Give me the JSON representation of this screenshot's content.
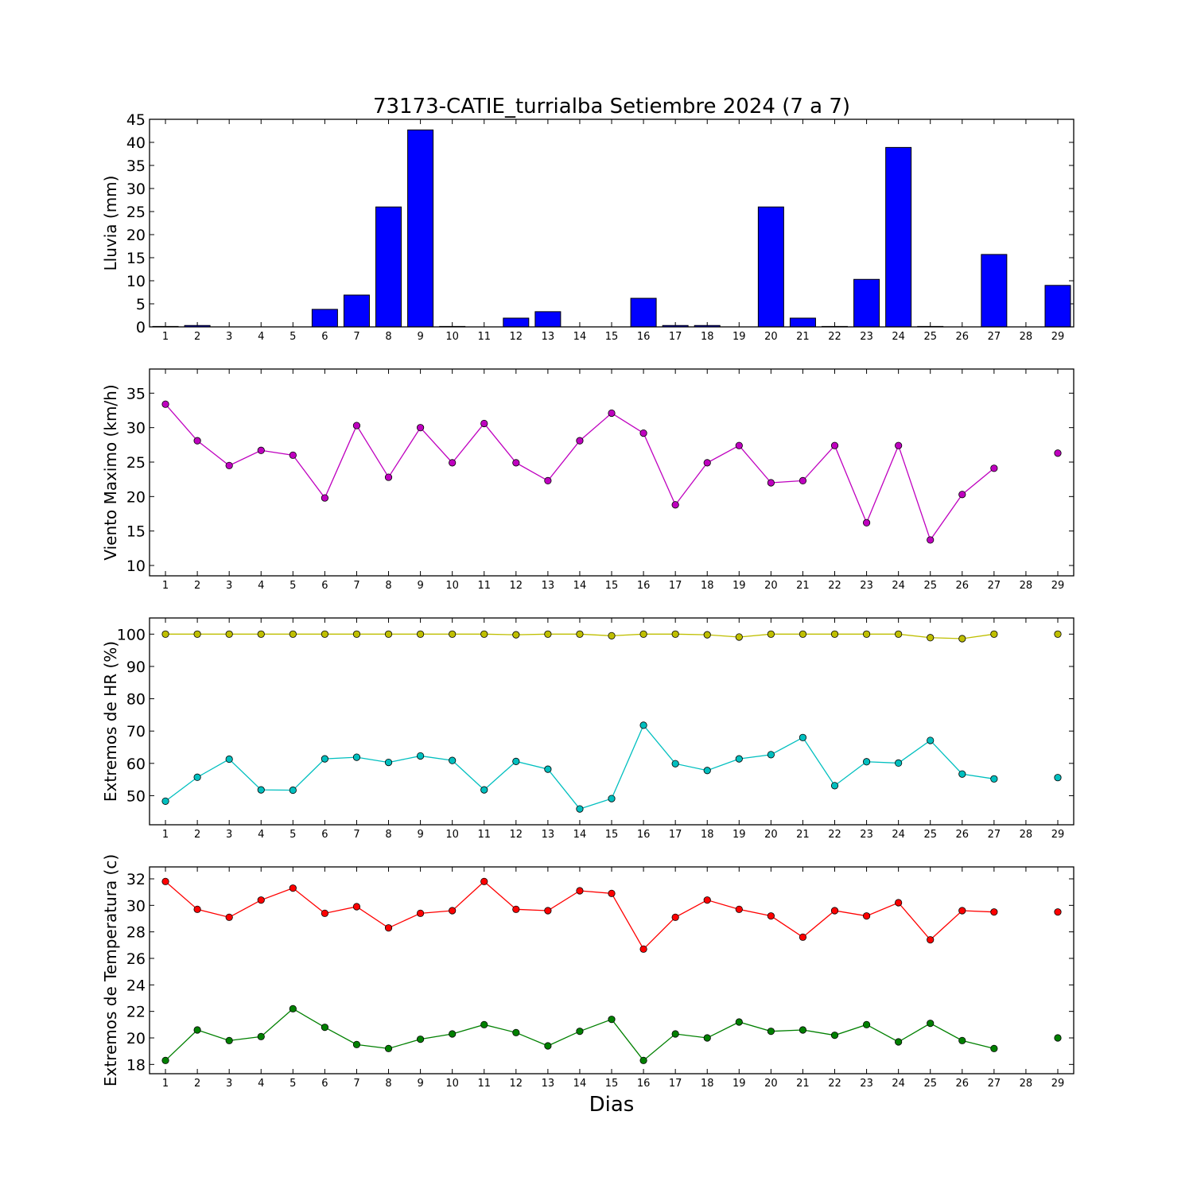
{
  "title": "73173-CATIE_turrialba Setiembre 2024  (7 a 7)",
  "xlabel": "Dias",
  "colors": {
    "rain": "#0000ff",
    "wind": "#bf00bf",
    "hr_max": "#bfbf00",
    "hr_min": "#00bfbf",
    "temp_max": "#ff0000",
    "temp_min": "#008000"
  },
  "chart_data": [
    {
      "type": "bar",
      "ylabel": "Lluvia (mm)",
      "ylim": [
        0,
        45
      ],
      "yticks": [
        0,
        5,
        10,
        15,
        20,
        25,
        30,
        35,
        40,
        45
      ],
      "categories": [
        1,
        2,
        3,
        4,
        5,
        6,
        7,
        8,
        9,
        10,
        11,
        12,
        13,
        14,
        15,
        16,
        17,
        18,
        19,
        20,
        21,
        22,
        23,
        24,
        25,
        26,
        27,
        28,
        29
      ],
      "series": [
        {
          "color": "#0000ff",
          "values": [
            0.1,
            0.3,
            0,
            0,
            0,
            3.8,
            6.9,
            26,
            42.7,
            0.1,
            0,
            1.9,
            3.3,
            0,
            0,
            6.2,
            0.3,
            0.3,
            0,
            26,
            1.9,
            0.1,
            10.3,
            38.9,
            0.1,
            0,
            15.7,
            0,
            9
          ]
        }
      ]
    },
    {
      "type": "line",
      "ylabel": "Viento Maximo (km/h)",
      "ylim": [
        8.5,
        38.5
      ],
      "yticks": [
        10,
        15,
        20,
        25,
        30,
        35
      ],
      "categories": [
        1,
        2,
        3,
        4,
        5,
        6,
        7,
        8,
        9,
        10,
        11,
        12,
        13,
        14,
        15,
        16,
        17,
        18,
        19,
        20,
        21,
        22,
        23,
        24,
        25,
        26,
        27,
        28,
        29
      ],
      "series": [
        {
          "color": "#bf00bf",
          "values": [
            33.4,
            28.1,
            24.5,
            26.7,
            26,
            19.8,
            30.3,
            22.8,
            30,
            24.9,
            30.6,
            24.9,
            22.3,
            28.1,
            32.1,
            29.2,
            18.8,
            24.9,
            27.4,
            22,
            22.3,
            27.4,
            16.2,
            27.4,
            13.7,
            20.3,
            24.1,
            null,
            26.3
          ]
        }
      ]
    },
    {
      "type": "line",
      "ylabel": "Extremos de HR (%)",
      "ylim": [
        41,
        105
      ],
      "yticks": [
        50,
        60,
        70,
        80,
        90,
        100
      ],
      "categories": [
        1,
        2,
        3,
        4,
        5,
        6,
        7,
        8,
        9,
        10,
        11,
        12,
        13,
        14,
        15,
        16,
        17,
        18,
        19,
        20,
        21,
        22,
        23,
        24,
        25,
        26,
        27,
        28,
        29
      ],
      "series": [
        {
          "color": "#bfbf00",
          "values": [
            100,
            100,
            100,
            100,
            100,
            100,
            100,
            100,
            100,
            100,
            100,
            99.8,
            100,
            100,
            99.5,
            100,
            100,
            99.8,
            99.1,
            100,
            100,
            100,
            100,
            100,
            98.9,
            98.6,
            100,
            null,
            100
          ]
        },
        {
          "color": "#00bfbf",
          "values": [
            48.3,
            55.7,
            61.3,
            51.8,
            51.7,
            61.4,
            61.9,
            60.3,
            62.3,
            60.9,
            51.8,
            60.6,
            58.2,
            45.9,
            49.1,
            71.8,
            59.9,
            57.8,
            61.4,
            62.7,
            68,
            53.1,
            60.5,
            60.1,
            67.1,
            56.7,
            55.2,
            null,
            55.6
          ]
        }
      ]
    },
    {
      "type": "line",
      "ylabel": "Extremos de Temperatura (c)",
      "ylim": [
        17.3,
        32.9
      ],
      "yticks": [
        18,
        20,
        22,
        24,
        26,
        28,
        30,
        32
      ],
      "categories": [
        1,
        2,
        3,
        4,
        5,
        6,
        7,
        8,
        9,
        10,
        11,
        12,
        13,
        14,
        15,
        16,
        17,
        18,
        19,
        20,
        21,
        22,
        23,
        24,
        25,
        26,
        27,
        28,
        29
      ],
      "series": [
        {
          "color": "#ff0000",
          "values": [
            31.8,
            29.7,
            29.1,
            30.4,
            31.3,
            29.4,
            29.9,
            28.3,
            29.4,
            29.6,
            31.8,
            29.7,
            29.6,
            31.1,
            30.9,
            26.7,
            29.1,
            30.4,
            29.7,
            29.2,
            27.6,
            29.6,
            29.2,
            30.2,
            27.4,
            29.6,
            29.5,
            null,
            29.5
          ]
        },
        {
          "color": "#008000",
          "values": [
            18.3,
            20.6,
            19.8,
            20.1,
            22.2,
            20.8,
            19.5,
            19.2,
            19.9,
            20.3,
            21,
            20.4,
            19.4,
            20.5,
            21.4,
            18.3,
            20.3,
            20,
            21.2,
            20.5,
            20.6,
            20.2,
            21,
            19.7,
            21.1,
            19.8,
            19.2,
            null,
            20
          ]
        }
      ]
    }
  ]
}
